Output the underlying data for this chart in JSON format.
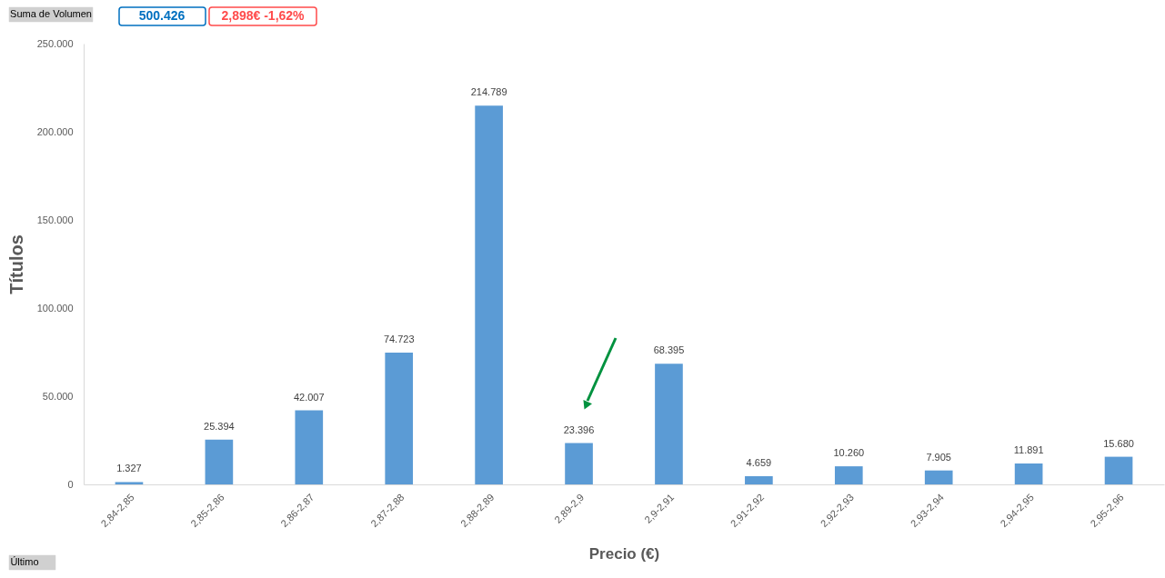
{
  "chart_data": {
    "type": "bar",
    "xlabel": "Precio (€)",
    "ylabel": "Títulos",
    "categories": [
      "2,84-2,85",
      "2,85-2,86",
      "2,86-2,87",
      "2,87-2,88",
      "2,88-2,89",
      "2,89-2,9",
      "2,9-2,91",
      "2,91-2,92",
      "2,92-2,93",
      "2,93-2,94",
      "2,94-2,95",
      "2,95-2,96"
    ],
    "values": [
      1327,
      25394,
      42007,
      74723,
      214789,
      23396,
      68395,
      4659,
      10260,
      7905,
      11891,
      15680
    ],
    "color": "#5b9bd5",
    "value_labels": [
      "1.327",
      "25.394",
      "42.007",
      "74.723",
      "214.789",
      "23.396",
      "68.395",
      "4.659",
      "10.260",
      "7.905",
      "11.891",
      "15.680"
    ],
    "ylim": [
      0,
      250000
    ],
    "yticks": [
      0,
      {
        "value": 50000,
        "label": "50.000"
      },
      {
        "value": 100000,
        "label": "100.000"
      },
      {
        "value": 150000,
        "label": "150.000"
      },
      {
        "value": 200000,
        "label": "200.000"
      },
      {
        "value": 250000,
        "label": "250.000"
      }
    ],
    "grid": false,
    "annotations": [
      "Suma de Volumen",
      "500.426",
      "2,898€   -1,62%",
      "Último"
    ]
  }
}
